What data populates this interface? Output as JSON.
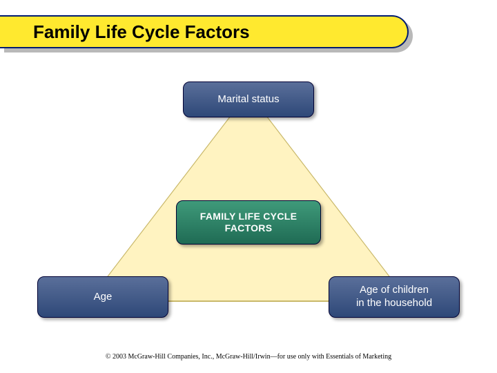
{
  "slide": {
    "title": "Family Life Cycle Factors",
    "title_bar": {
      "bg_color": "#ffe92f",
      "border_color": "#001b70",
      "text_color": "#000000",
      "font_size_pt": 20,
      "shadow_color": "#b9b9b9"
    },
    "diagram": {
      "type": "infographic",
      "triangle": {
        "fill_color": "#fff3c1",
        "stroke_color": "#c9b86a"
      },
      "nodes": {
        "top": {
          "label": "Marital status",
          "bg_gradient": [
            "#5a6f9a",
            "#2e4878"
          ],
          "text_color": "#ffffff",
          "font_size_pt": 12
        },
        "center": {
          "label": "FAMILY LIFE CYCLE\nFACTORS",
          "bg_gradient": [
            "#3f9a7a",
            "#1f6b54"
          ],
          "text_color": "#ffffff",
          "font_size_pt": 11,
          "font_weight": "bold"
        },
        "left": {
          "label": "Age",
          "bg_gradient": [
            "#5a6f9a",
            "#2e4878"
          ],
          "text_color": "#ffffff",
          "font_size_pt": 12
        },
        "right": {
          "label": "Age of children\nin the household",
          "bg_gradient": [
            "#5a6f9a",
            "#2e4878"
          ],
          "text_color": "#ffffff",
          "font_size_pt": 12
        }
      }
    },
    "footer": "© 2003 McGraw-Hill Companies, Inc., McGraw-Hill/Irwin—for use only with Essentials of Marketing",
    "background_color": "#ffffff"
  }
}
